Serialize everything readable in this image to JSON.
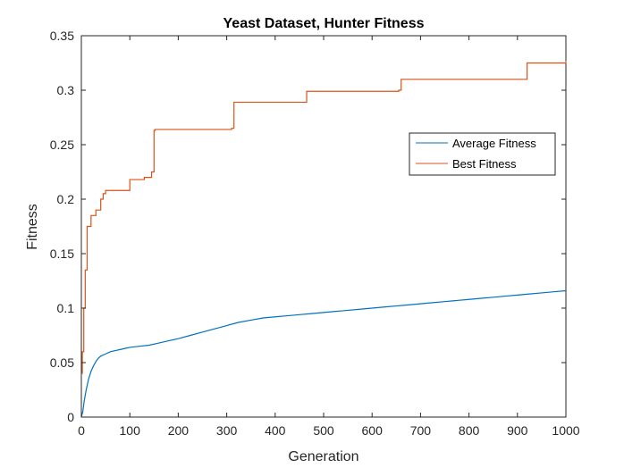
{
  "chart_data": {
    "type": "line",
    "title": "Yeast Dataset, Hunter Fitness",
    "xlabel": "Generation",
    "ylabel": "Fitness",
    "xlim": [
      0,
      1000
    ],
    "ylim": [
      0,
      0.35
    ],
    "xticks": [
      0,
      100,
      200,
      300,
      400,
      500,
      600,
      700,
      800,
      900,
      1000
    ],
    "yticks": [
      0,
      0.05,
      0.1,
      0.15,
      0.2,
      0.25,
      0.3,
      0.35
    ],
    "xtick_labels": [
      "0",
      "100",
      "200",
      "300",
      "400",
      "500",
      "600",
      "700",
      "800",
      "900",
      "1000"
    ],
    "ytick_labels": [
      "0",
      "0.05",
      "0.1",
      "0.15",
      "0.2",
      "0.25",
      "0.3",
      "0.35"
    ],
    "grid": false,
    "legend_position": "right",
    "series": [
      {
        "name": "Average Fitness",
        "color": "#0072BD",
        "step": false,
        "x": [
          0,
          3,
          6,
          10,
          15,
          20,
          25,
          30,
          35,
          40,
          50,
          60,
          70,
          80,
          90,
          100,
          120,
          140,
          160,
          180,
          200,
          225,
          250,
          275,
          300,
          325,
          350,
          375,
          400,
          425,
          450,
          475,
          500,
          525,
          550,
          575,
          600,
          625,
          650,
          675,
          700,
          725,
          750,
          775,
          800,
          825,
          850,
          875,
          900,
          925,
          950,
          975,
          1000
        ],
        "y": [
          0.0,
          0.005,
          0.015,
          0.025,
          0.035,
          0.042,
          0.047,
          0.051,
          0.054,
          0.056,
          0.058,
          0.06,
          0.061,
          0.062,
          0.063,
          0.064,
          0.065,
          0.066,
          0.068,
          0.07,
          0.072,
          0.075,
          0.078,
          0.081,
          0.084,
          0.087,
          0.089,
          0.091,
          0.092,
          0.093,
          0.094,
          0.095,
          0.096,
          0.097,
          0.098,
          0.099,
          0.1,
          0.101,
          0.102,
          0.103,
          0.104,
          0.105,
          0.106,
          0.107,
          0.108,
          0.109,
          0.11,
          0.111,
          0.112,
          0.113,
          0.114,
          0.115,
          0.116
        ]
      },
      {
        "name": "Best Fitness",
        "color": "#D95319",
        "step": true,
        "x": [
          0,
          2,
          5,
          8,
          12,
          20,
          30,
          40,
          45,
          50,
          95,
          100,
          130,
          145,
          150,
          152,
          300,
          310,
          315,
          460,
          465,
          655,
          660,
          915,
          920,
          1000
        ],
        "y": [
          0.04,
          0.06,
          0.1,
          0.135,
          0.175,
          0.185,
          0.19,
          0.2,
          0.205,
          0.208,
          0.208,
          0.218,
          0.22,
          0.225,
          0.263,
          0.264,
          0.264,
          0.265,
          0.289,
          0.289,
          0.299,
          0.3,
          0.31,
          0.31,
          0.325,
          0.327
        ]
      }
    ]
  }
}
